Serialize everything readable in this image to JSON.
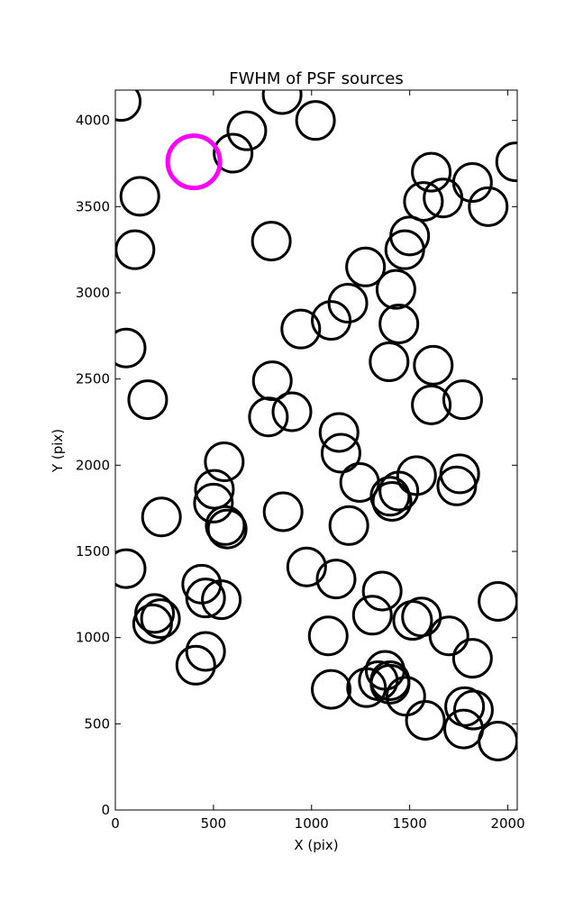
{
  "chart_data": {
    "type": "scatter",
    "title": "FWHM of PSF sources",
    "xlabel": "X (pix)",
    "ylabel": "Y (pix)",
    "xlim": [
      0,
      2048
    ],
    "ylim": [
      0,
      4176
    ],
    "xticks": [
      0,
      500,
      1000,
      1500,
      2000
    ],
    "yticks": [
      0,
      500,
      1000,
      1500,
      2000,
      2500,
      3000,
      3500,
      4000
    ],
    "marker": "open-circle",
    "grid": false,
    "legend": "none",
    "colors": {
      "normal": "#000000",
      "highlight": "#ff00ff"
    },
    "series": [
      {
        "values": [
          {
            "x": 30,
            "y": 4110
          },
          {
            "x": 850,
            "y": 4150
          },
          {
            "x": 670,
            "y": 3940
          },
          {
            "x": 600,
            "y": 3810
          },
          {
            "x": 1020,
            "y": 4000
          },
          {
            "x": 2040,
            "y": 3760
          },
          {
            "x": 125,
            "y": 3560
          },
          {
            "x": 100,
            "y": 3250
          },
          {
            "x": 795,
            "y": 3300
          },
          {
            "x": 1610,
            "y": 3700
          },
          {
            "x": 1820,
            "y": 3640
          },
          {
            "x": 1570,
            "y": 3530
          },
          {
            "x": 1670,
            "y": 3550
          },
          {
            "x": 1900,
            "y": 3500
          },
          {
            "x": 1500,
            "y": 3330
          },
          {
            "x": 1475,
            "y": 3250
          },
          {
            "x": 1275,
            "y": 3150
          },
          {
            "x": 1430,
            "y": 3020
          },
          {
            "x": 1185,
            "y": 2940
          },
          {
            "x": 1100,
            "y": 2840
          },
          {
            "x": 945,
            "y": 2790
          },
          {
            "x": 1445,
            "y": 2820
          },
          {
            "x": 55,
            "y": 2680
          },
          {
            "x": 1395,
            "y": 2600
          },
          {
            "x": 1620,
            "y": 2580
          },
          {
            "x": 800,
            "y": 2490
          },
          {
            "x": 165,
            "y": 2380
          },
          {
            "x": 1610,
            "y": 2350
          },
          {
            "x": 1770,
            "y": 2380
          },
          {
            "x": 780,
            "y": 2280
          },
          {
            "x": 900,
            "y": 2310
          },
          {
            "x": 1140,
            "y": 2190
          },
          {
            "x": 1150,
            "y": 2070
          },
          {
            "x": 555,
            "y": 2020
          },
          {
            "x": 1245,
            "y": 1900
          },
          {
            "x": 505,
            "y": 1860
          },
          {
            "x": 1535,
            "y": 1940
          },
          {
            "x": 1755,
            "y": 1950
          },
          {
            "x": 1740,
            "y": 1880
          },
          {
            "x": 500,
            "y": 1780
          },
          {
            "x": 1445,
            "y": 1850
          },
          {
            "x": 1400,
            "y": 1820
          },
          {
            "x": 1410,
            "y": 1790
          },
          {
            "x": 235,
            "y": 1700
          },
          {
            "x": 855,
            "y": 1730
          },
          {
            "x": 560,
            "y": 1650
          },
          {
            "x": 570,
            "y": 1630
          },
          {
            "x": 1190,
            "y": 1650
          },
          {
            "x": 55,
            "y": 1400
          },
          {
            "x": 975,
            "y": 1410
          },
          {
            "x": 1125,
            "y": 1340
          },
          {
            "x": 440,
            "y": 1310
          },
          {
            "x": 460,
            "y": 1230
          },
          {
            "x": 1360,
            "y": 1270
          },
          {
            "x": 540,
            "y": 1220
          },
          {
            "x": 1950,
            "y": 1210
          },
          {
            "x": 200,
            "y": 1140
          },
          {
            "x": 230,
            "y": 1110
          },
          {
            "x": 190,
            "y": 1080
          },
          {
            "x": 1310,
            "y": 1130
          },
          {
            "x": 1515,
            "y": 1100
          },
          {
            "x": 1560,
            "y": 1120
          },
          {
            "x": 1700,
            "y": 1010
          },
          {
            "x": 1085,
            "y": 1010
          },
          {
            "x": 460,
            "y": 920
          },
          {
            "x": 1820,
            "y": 880
          },
          {
            "x": 410,
            "y": 840
          },
          {
            "x": 1375,
            "y": 810
          },
          {
            "x": 1400,
            "y": 750
          },
          {
            "x": 1100,
            "y": 700
          },
          {
            "x": 1280,
            "y": 710
          },
          {
            "x": 1400,
            "y": 730
          },
          {
            "x": 1480,
            "y": 660
          },
          {
            "x": 1780,
            "y": 600
          },
          {
            "x": 1825,
            "y": 580
          },
          {
            "x": 1580,
            "y": 520
          },
          {
            "x": 1775,
            "y": 470
          },
          {
            "x": 1950,
            "y": 400
          },
          {
            "x": 1340,
            "y": 750
          }
        ]
      }
    ],
    "highlight": [
      {
        "x": 400,
        "y": 3760
      }
    ]
  }
}
